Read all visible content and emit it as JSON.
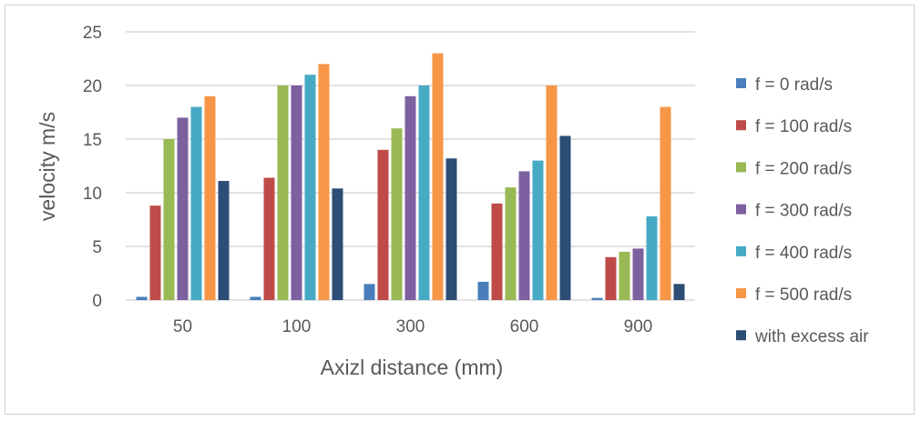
{
  "chart_data": {
    "type": "bar",
    "title": "",
    "xlabel": "Axizl distance (mm)",
    "ylabel": "velocity m/s",
    "ylim": [
      0,
      25
    ],
    "yticks": [
      "0",
      "5",
      "10",
      "15",
      "20",
      "25"
    ],
    "grid": true,
    "legend_position": "right",
    "categories": [
      "50",
      "100",
      "300",
      "600",
      "900"
    ],
    "series": [
      {
        "name": "f = 0 rad/s",
        "color": "#4a7ebb",
        "values": [
          0.3,
          0.3,
          1.5,
          1.7,
          0.2
        ]
      },
      {
        "name": "f = 100 rad/s",
        "color": "#be4b48",
        "values": [
          8.8,
          11.4,
          14,
          9,
          4
        ]
      },
      {
        "name": "f = 200 rad/s",
        "color": "#98b954",
        "values": [
          15,
          20,
          16,
          10.5,
          4.5
        ]
      },
      {
        "name": "f = 300 rad/s",
        "color": "#7d60a0",
        "values": [
          17,
          20,
          19,
          12,
          4.8
        ]
      },
      {
        "name": "f = 400 rad/s",
        "color": "#46aac5",
        "values": [
          18,
          21,
          20,
          13,
          7.8
        ]
      },
      {
        "name": "f = 500 rad/s",
        "color": "#f79646",
        "values": [
          19,
          22,
          23,
          20,
          18
        ]
      },
      {
        "name": "with excess air",
        "color": "#2c4d75",
        "values": [
          11.1,
          10.4,
          13.2,
          15.3,
          1.5
        ]
      }
    ]
  }
}
